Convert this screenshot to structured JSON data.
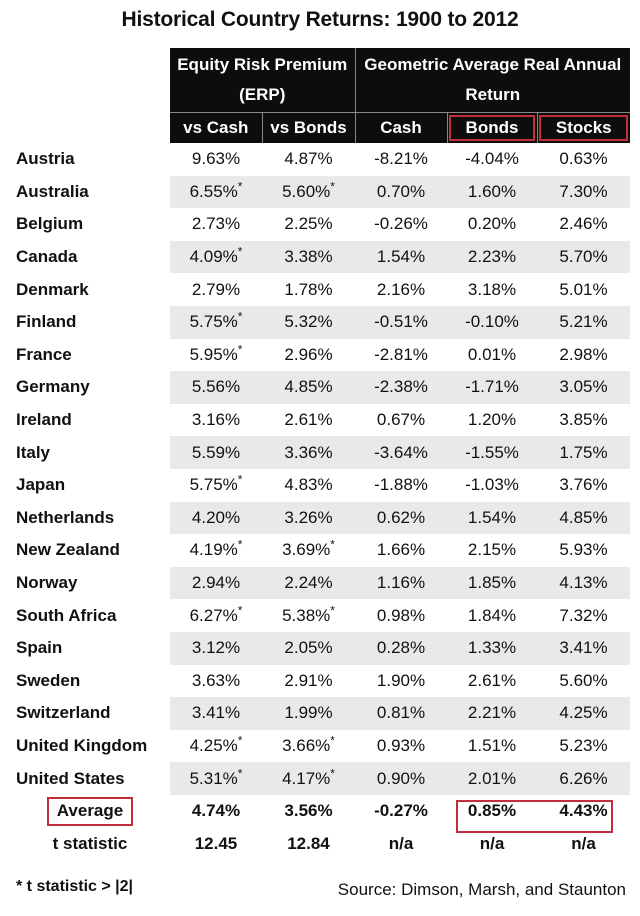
{
  "chart_data": {
    "type": "table",
    "title": "Historical Country Returns: 1900 to 2012",
    "header_groups": [
      {
        "label": "Equity Risk Premium (ERP)",
        "columns": [
          "vs Cash",
          "vs Bonds"
        ]
      },
      {
        "label": "Geometric Average Real Annual Return",
        "columns": [
          "Cash",
          "Bonds",
          "Stocks"
        ]
      }
    ],
    "columns": [
      "vs Cash",
      "vs Bonds",
      "Cash",
      "Bonds",
      "Stocks"
    ],
    "rows": [
      {
        "country": "Austria",
        "vs_cash": "9.63%",
        "vs_cash_star": false,
        "vs_bonds": "4.87%",
        "vs_bonds_star": false,
        "cash": "-8.21%",
        "bonds": "-4.04%",
        "stocks": "0.63%"
      },
      {
        "country": "Australia",
        "vs_cash": "6.55%",
        "vs_cash_star": true,
        "vs_bonds": "5.60%",
        "vs_bonds_star": true,
        "cash": "0.70%",
        "bonds": "1.60%",
        "stocks": "7.30%"
      },
      {
        "country": "Belgium",
        "vs_cash": "2.73%",
        "vs_cash_star": false,
        "vs_bonds": "2.25%",
        "vs_bonds_star": false,
        "cash": "-0.26%",
        "bonds": "0.20%",
        "stocks": "2.46%"
      },
      {
        "country": "Canada",
        "vs_cash": "4.09%",
        "vs_cash_star": true,
        "vs_bonds": "3.38%",
        "vs_bonds_star": false,
        "cash": "1.54%",
        "bonds": "2.23%",
        "stocks": "5.70%"
      },
      {
        "country": "Denmark",
        "vs_cash": "2.79%",
        "vs_cash_star": false,
        "vs_bonds": "1.78%",
        "vs_bonds_star": false,
        "cash": "2.16%",
        "bonds": "3.18%",
        "stocks": "5.01%"
      },
      {
        "country": "Finland",
        "vs_cash": "5.75%",
        "vs_cash_star": true,
        "vs_bonds": "5.32%",
        "vs_bonds_star": false,
        "cash": "-0.51%",
        "bonds": "-0.10%",
        "stocks": "5.21%"
      },
      {
        "country": "France",
        "vs_cash": "5.95%",
        "vs_cash_star": true,
        "vs_bonds": "2.96%",
        "vs_bonds_star": false,
        "cash": "-2.81%",
        "bonds": "0.01%",
        "stocks": "2.98%"
      },
      {
        "country": "Germany",
        "vs_cash": "5.56%",
        "vs_cash_star": false,
        "vs_bonds": "4.85%",
        "vs_bonds_star": false,
        "cash": "-2.38%",
        "bonds": "-1.71%",
        "stocks": "3.05%"
      },
      {
        "country": "Ireland",
        "vs_cash": "3.16%",
        "vs_cash_star": false,
        "vs_bonds": "2.61%",
        "vs_bonds_star": false,
        "cash": "0.67%",
        "bonds": "1.20%",
        "stocks": "3.85%"
      },
      {
        "country": "Italy",
        "vs_cash": "5.59%",
        "vs_cash_star": false,
        "vs_bonds": "3.36%",
        "vs_bonds_star": false,
        "cash": "-3.64%",
        "bonds": "-1.55%",
        "stocks": "1.75%"
      },
      {
        "country": "Japan",
        "vs_cash": "5.75%",
        "vs_cash_star": true,
        "vs_bonds": "4.83%",
        "vs_bonds_star": false,
        "cash": "-1.88%",
        "bonds": "-1.03%",
        "stocks": "3.76%"
      },
      {
        "country": "Netherlands",
        "vs_cash": "4.20%",
        "vs_cash_star": false,
        "vs_bonds": "3.26%",
        "vs_bonds_star": false,
        "cash": "0.62%",
        "bonds": "1.54%",
        "stocks": "4.85%"
      },
      {
        "country": "New Zealand",
        "vs_cash": "4.19%",
        "vs_cash_star": true,
        "vs_bonds": "3.69%",
        "vs_bonds_star": true,
        "cash": "1.66%",
        "bonds": "2.15%",
        "stocks": "5.93%"
      },
      {
        "country": "Norway",
        "vs_cash": "2.94%",
        "vs_cash_star": false,
        "vs_bonds": "2.24%",
        "vs_bonds_star": false,
        "cash": "1.16%",
        "bonds": "1.85%",
        "stocks": "4.13%"
      },
      {
        "country": "South Africa",
        "vs_cash": "6.27%",
        "vs_cash_star": true,
        "vs_bonds": "5.38%",
        "vs_bonds_star": true,
        "cash": "0.98%",
        "bonds": "1.84%",
        "stocks": "7.32%"
      },
      {
        "country": "Spain",
        "vs_cash": "3.12%",
        "vs_cash_star": false,
        "vs_bonds": "2.05%",
        "vs_bonds_star": false,
        "cash": "0.28%",
        "bonds": "1.33%",
        "stocks": "3.41%"
      },
      {
        "country": "Sweden",
        "vs_cash": "3.63%",
        "vs_cash_star": false,
        "vs_bonds": "2.91%",
        "vs_bonds_star": false,
        "cash": "1.90%",
        "bonds": "2.61%",
        "stocks": "5.60%"
      },
      {
        "country": "Switzerland",
        "vs_cash": "3.41%",
        "vs_cash_star": false,
        "vs_bonds": "1.99%",
        "vs_bonds_star": false,
        "cash": "0.81%",
        "bonds": "2.21%",
        "stocks": "4.25%"
      },
      {
        "country": "United Kingdom",
        "vs_cash": "4.25%",
        "vs_cash_star": true,
        "vs_bonds": "3.66%",
        "vs_bonds_star": true,
        "cash": "0.93%",
        "bonds": "1.51%",
        "stocks": "5.23%"
      },
      {
        "country": "United States",
        "vs_cash": "5.31%",
        "vs_cash_star": true,
        "vs_bonds": "4.17%",
        "vs_bonds_star": true,
        "cash": "0.90%",
        "bonds": "2.01%",
        "stocks": "6.26%"
      }
    ],
    "average": {
      "label": "Average",
      "vs_cash": "4.74%",
      "vs_bonds": "3.56%",
      "cash": "-0.27%",
      "bonds": "0.85%",
      "stocks": "4.43%"
    },
    "t_statistic": {
      "label": "t statistic",
      "vs_cash": "12.45",
      "vs_bonds": "12.84",
      "cash": "n/a",
      "bonds": "n/a",
      "stocks": "n/a"
    },
    "star_symbol": "*",
    "footnote": "* t statistic > |2|",
    "source": "Source: Dimson, Marsh, and Staunton"
  },
  "colors": {
    "header_background": "#0d0d0d",
    "header_text": "#ffffff",
    "highlight_border": "#c0303a",
    "stripe": "#e9e9e9"
  }
}
